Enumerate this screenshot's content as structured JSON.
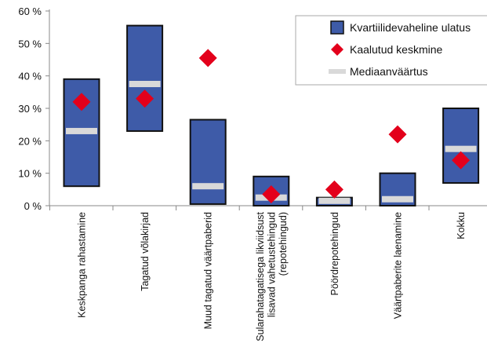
{
  "chart_data": {
    "type": "box",
    "title": "",
    "xlabel": "",
    "ylabel": "",
    "ylim": [
      0,
      60
    ],
    "y_ticks": [
      "0 %",
      "10 %",
      "20 %",
      "30 %",
      "40 %",
      "50 %",
      "60 %"
    ],
    "grid": false,
    "legend_position": "top-right",
    "legend": [
      {
        "key": "range",
        "label": "Kvartiilidevaheline ulatus"
      },
      {
        "key": "mean",
        "label": "Kaalutud keskmine"
      },
      {
        "key": "median",
        "label": "Mediaanväärtus"
      }
    ],
    "colors": {
      "box_fill": "#3e5ba8",
      "box_border": "#111111",
      "mean": "#e3001b",
      "median": "#d9d9d9",
      "axis": "#888888"
    },
    "categories": [
      {
        "lines": [
          "Keskpanga rahastamine"
        ],
        "q1": 6,
        "q3": 39,
        "median": 23,
        "mean": 32
      },
      {
        "lines": [
          "Tagatud võlakirjad"
        ],
        "q1": 23,
        "q3": 55.5,
        "median": 37.5,
        "mean": 33
      },
      {
        "lines": [
          "Muud tagatud väärtpaberid"
        ],
        "q1": 0.5,
        "q3": 26.5,
        "median": 6,
        "mean": 45.5
      },
      {
        "lines": [
          "Sularahatagatisega likviidsust",
          "lisavad vahetustehingud",
          "(repotehingud)"
        ],
        "q1": 0,
        "q3": 9,
        "median": 2.5,
        "mean": 3.5
      },
      {
        "lines": [
          "Pöördrepotehingud"
        ],
        "q1": 0,
        "q3": 2.5,
        "median": 1.5,
        "mean": 5
      },
      {
        "lines": [
          "Väärtpaberite laenamine"
        ],
        "q1": 0,
        "q3": 10,
        "median": 2,
        "mean": 22
      },
      {
        "lines": [
          "Kokku"
        ],
        "q1": 7,
        "q3": 30,
        "median": 17.5,
        "mean": 14
      }
    ]
  }
}
